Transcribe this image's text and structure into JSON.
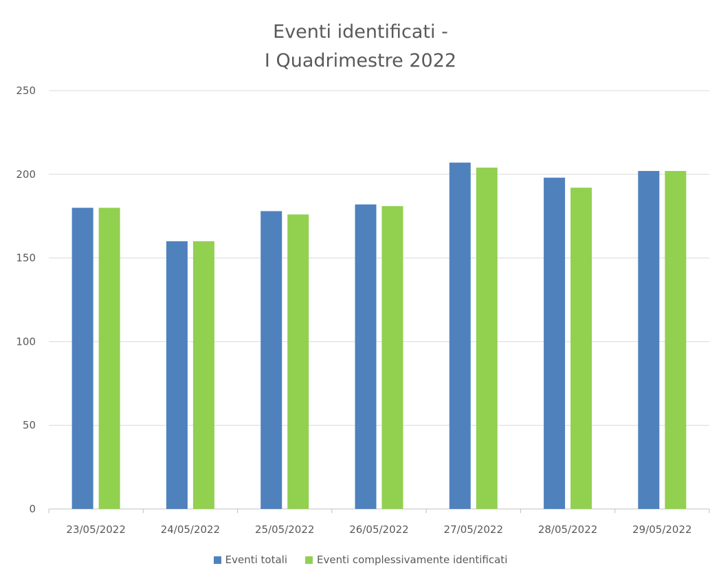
{
  "chart_data": {
    "type": "bar",
    "title_line1": "Eventi identificati -",
    "title_line2": "I Quadrimestre  2022",
    "xlabel": "",
    "ylabel": "",
    "categories": [
      "23/05/2022",
      "24/05/2022",
      "25/05/2022",
      "26/05/2022",
      "27/05/2022",
      "28/05/2022",
      "29/05/2022"
    ],
    "series": [
      {
        "name": "Eventi totali",
        "color": "#4f81bd",
        "values": [
          180,
          160,
          178,
          182,
          207,
          198,
          202
        ]
      },
      {
        "name": "Eventi  complessivamente identificati",
        "color": "#92d050",
        "values": [
          180,
          160,
          176,
          181,
          204,
          192,
          202
        ]
      }
    ],
    "ylim": [
      0,
      250
    ],
    "yticks": [
      0,
      50,
      100,
      150,
      200,
      250
    ],
    "grid": true,
    "legend_position": "bottom"
  }
}
